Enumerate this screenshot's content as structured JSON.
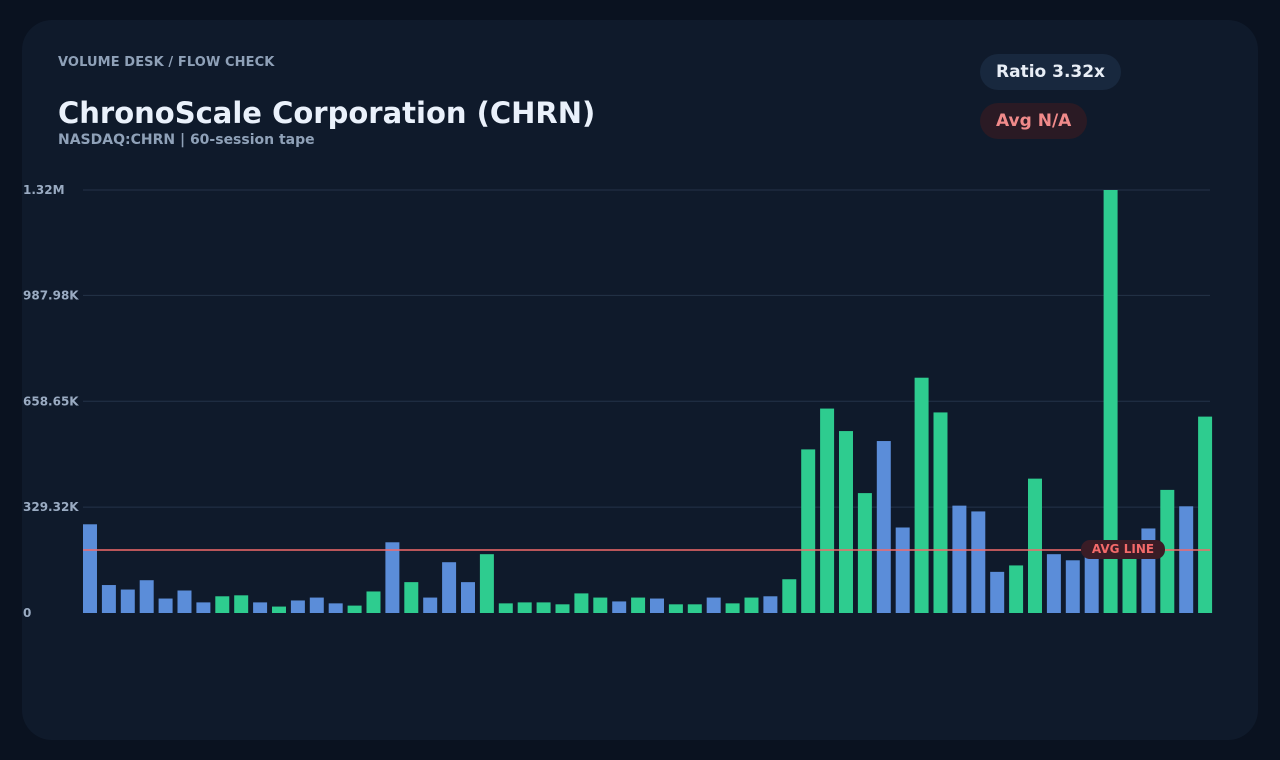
{
  "header": {
    "breadcrumb": "VOLUME DESK / FLOW CHECK",
    "title": "ChronoScale Corporation (CHRN)",
    "subtitle": "NASDAQ:CHRN | 60-session tape"
  },
  "badges": {
    "ratio": "Ratio 3.32x",
    "avg": "Avg N/A"
  },
  "colors": {
    "background": "#0a1220",
    "card": "#0f1a2b",
    "up_bar": "#2ecc8f",
    "down_bar": "#5b8dd9",
    "avg_line": "#f36a6a",
    "grid": "#243349"
  },
  "chart_data": {
    "type": "bar",
    "title": "ChronoScale Corporation (CHRN)",
    "subtitle": "NASDAQ:CHRN | 60-session tape",
    "xlabel": "",
    "ylabel": "",
    "ylim": [
      0,
      1316000
    ],
    "yticks": [
      0,
      329320,
      658650,
      987980,
      1316000
    ],
    "ytick_labels": [
      "0",
      "329.32K",
      "658.65K",
      "987.98K",
      "1.32M"
    ],
    "grid": true,
    "avg_line": {
      "label": "AVG LINE",
      "value": 196000
    },
    "bars": [
      {
        "value": 276000,
        "dir": "down"
      },
      {
        "value": 87000,
        "dir": "down"
      },
      {
        "value": 73000,
        "dir": "down"
      },
      {
        "value": 102000,
        "dir": "down"
      },
      {
        "value": 45000,
        "dir": "down"
      },
      {
        "value": 70000,
        "dir": "down"
      },
      {
        "value": 33000,
        "dir": "down"
      },
      {
        "value": 52000,
        "dir": "up"
      },
      {
        "value": 55000,
        "dir": "up"
      },
      {
        "value": 33000,
        "dir": "down"
      },
      {
        "value": 20000,
        "dir": "up"
      },
      {
        "value": 39000,
        "dir": "down"
      },
      {
        "value": 48000,
        "dir": "down"
      },
      {
        "value": 30000,
        "dir": "down"
      },
      {
        "value": 23000,
        "dir": "up"
      },
      {
        "value": 67000,
        "dir": "up"
      },
      {
        "value": 220000,
        "dir": "down"
      },
      {
        "value": 96000,
        "dir": "up"
      },
      {
        "value": 48000,
        "dir": "down"
      },
      {
        "value": 158000,
        "dir": "down"
      },
      {
        "value": 96000,
        "dir": "down"
      },
      {
        "value": 183000,
        "dir": "up"
      },
      {
        "value": 30000,
        "dir": "up"
      },
      {
        "value": 33000,
        "dir": "up"
      },
      {
        "value": 33000,
        "dir": "up"
      },
      {
        "value": 27000,
        "dir": "up"
      },
      {
        "value": 61000,
        "dir": "up"
      },
      {
        "value": 48000,
        "dir": "up"
      },
      {
        "value": 36000,
        "dir": "down"
      },
      {
        "value": 48000,
        "dir": "up"
      },
      {
        "value": 45000,
        "dir": "down"
      },
      {
        "value": 27000,
        "dir": "up"
      },
      {
        "value": 27000,
        "dir": "up"
      },
      {
        "value": 48000,
        "dir": "down"
      },
      {
        "value": 30000,
        "dir": "up"
      },
      {
        "value": 48000,
        "dir": "up"
      },
      {
        "value": 52000,
        "dir": "down"
      },
      {
        "value": 105000,
        "dir": "up"
      },
      {
        "value": 509000,
        "dir": "up"
      },
      {
        "value": 636000,
        "dir": "up"
      },
      {
        "value": 566000,
        "dir": "up"
      },
      {
        "value": 373000,
        "dir": "up"
      },
      {
        "value": 535000,
        "dir": "down"
      },
      {
        "value": 266000,
        "dir": "down"
      },
      {
        "value": 732000,
        "dir": "up"
      },
      {
        "value": 624000,
        "dir": "up"
      },
      {
        "value": 334000,
        "dir": "down"
      },
      {
        "value": 316000,
        "dir": "down"
      },
      {
        "value": 128000,
        "dir": "down"
      },
      {
        "value": 148000,
        "dir": "up"
      },
      {
        "value": 418000,
        "dir": "up"
      },
      {
        "value": 183000,
        "dir": "down"
      },
      {
        "value": 164000,
        "dir": "down"
      },
      {
        "value": 196000,
        "dir": "down"
      },
      {
        "value": 1316000,
        "dir": "up"
      },
      {
        "value": 180000,
        "dir": "up"
      },
      {
        "value": 263000,
        "dir": "down"
      },
      {
        "value": 383000,
        "dir": "up"
      },
      {
        "value": 332000,
        "dir": "down"
      },
      {
        "value": 611000,
        "dir": "up"
      }
    ]
  }
}
